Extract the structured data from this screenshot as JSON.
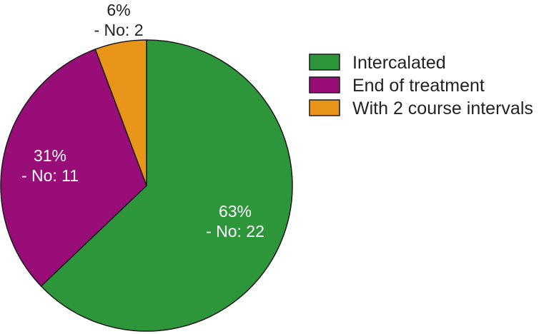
{
  "chart_data": {
    "type": "pie",
    "title": "",
    "legend_position": "right",
    "slices": [
      {
        "label": "Intercalated",
        "percent_label": "63%",
        "count_label": "- No: 22",
        "value": 22,
        "color": "#2e963a",
        "label_color": "#ffffff"
      },
      {
        "label": "End of treatment",
        "percent_label": "31%",
        "count_label": "- No: 11",
        "value": 11,
        "color": "#990d78",
        "label_color": "#ffffff"
      },
      {
        "label": "With 2 course intervals",
        "percent_label": "6%",
        "count_label": "- No: 2",
        "value": 2,
        "color": "#e8951a",
        "label_color": "#222222"
      }
    ]
  }
}
